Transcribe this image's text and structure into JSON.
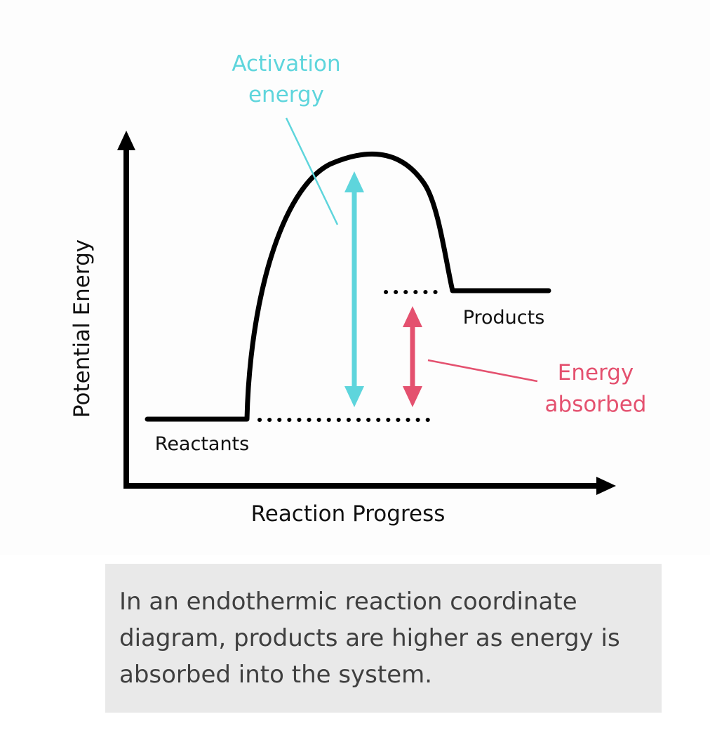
{
  "diagram": {
    "y_axis_label": "Potential Energy",
    "x_axis_label": "Reaction Progress",
    "reactants_label": "Reactants",
    "products_label": "Products",
    "activation_label_line1": "Activation",
    "activation_label_line2": "energy",
    "absorbed_label_line1": "Energy",
    "absorbed_label_line2": "absorbed"
  },
  "colors": {
    "curve": "#000000",
    "activation_energy": "#5ed5dc",
    "energy_absorbed": "#e4516f",
    "caption_text": "#3f3f3f",
    "caption_background": "#e9e9e9"
  },
  "caption": {
    "text": "In an endothermic reaction coordinate diagram, products are higher as energy is absorbed into the system."
  }
}
